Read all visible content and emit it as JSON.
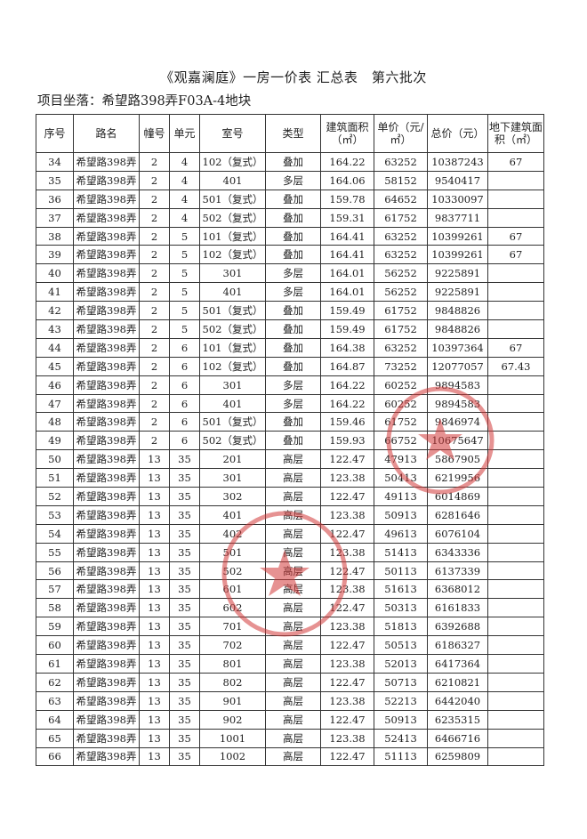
{
  "title": "《观嘉澜庭》一房一价表 汇总表　第六批次",
  "subtitle": "项目坐落：希望路398弄F03A-4地块",
  "stamp_color": "#d23a3a",
  "columns": [
    "序号",
    "路名",
    "幢号",
    "单元",
    "室号",
    "类型",
    "建筑面积（㎡）",
    "单价（元/㎡）",
    "总价（元）",
    "地下建筑面积（㎡）"
  ],
  "rows": [
    [
      "34",
      "希望路398弄",
      "2",
      "4",
      "102（复式）",
      "叠加",
      "164.22",
      "63252",
      "10387243",
      "67"
    ],
    [
      "35",
      "希望路398弄",
      "2",
      "4",
      "401",
      "多层",
      "164.06",
      "58152",
      "9540417",
      ""
    ],
    [
      "36",
      "希望路398弄",
      "2",
      "4",
      "501（复式）",
      "叠加",
      "159.78",
      "64652",
      "10330097",
      ""
    ],
    [
      "37",
      "希望路398弄",
      "2",
      "4",
      "502（复式）",
      "叠加",
      "159.31",
      "61752",
      "9837711",
      ""
    ],
    [
      "38",
      "希望路398弄",
      "2",
      "5",
      "101（复式）",
      "叠加",
      "164.41",
      "63252",
      "10399261",
      "67"
    ],
    [
      "39",
      "希望路398弄",
      "2",
      "5",
      "102（复式）",
      "叠加",
      "164.41",
      "63252",
      "10399261",
      "67"
    ],
    [
      "40",
      "希望路398弄",
      "2",
      "5",
      "301",
      "多层",
      "164.01",
      "56252",
      "9225891",
      ""
    ],
    [
      "41",
      "希望路398弄",
      "2",
      "5",
      "401",
      "多层",
      "164.01",
      "56252",
      "9225891",
      ""
    ],
    [
      "42",
      "希望路398弄",
      "2",
      "5",
      "501（复式）",
      "叠加",
      "159.49",
      "61752",
      "9848826",
      ""
    ],
    [
      "43",
      "希望路398弄",
      "2",
      "5",
      "502（复式）",
      "叠加",
      "159.49",
      "61752",
      "9848826",
      ""
    ],
    [
      "44",
      "希望路398弄",
      "2",
      "6",
      "101（复式）",
      "叠加",
      "164.38",
      "63252",
      "10397364",
      "67"
    ],
    [
      "45",
      "希望路398弄",
      "2",
      "6",
      "102（复式）",
      "叠加",
      "164.87",
      "73252",
      "12077057",
      "67.43"
    ],
    [
      "46",
      "希望路398弄",
      "2",
      "6",
      "301",
      "多层",
      "164.22",
      "60252",
      "9894583",
      ""
    ],
    [
      "47",
      "希望路398弄",
      "2",
      "6",
      "401",
      "多层",
      "164.22",
      "60252",
      "9894583",
      ""
    ],
    [
      "48",
      "希望路398弄",
      "2",
      "6",
      "501（复式）",
      "叠加",
      "159.46",
      "61752",
      "9846974",
      ""
    ],
    [
      "49",
      "希望路398弄",
      "2",
      "6",
      "502（复式）",
      "叠加",
      "159.93",
      "66752",
      "10675647",
      ""
    ],
    [
      "50",
      "希望路398弄",
      "13",
      "35",
      "201",
      "高层",
      "122.47",
      "47913",
      "5867905",
      ""
    ],
    [
      "51",
      "希望路398弄",
      "13",
      "35",
      "301",
      "高层",
      "123.38",
      "50413",
      "6219956",
      ""
    ],
    [
      "52",
      "希望路398弄",
      "13",
      "35",
      "302",
      "高层",
      "122.47",
      "49113",
      "6014869",
      ""
    ],
    [
      "53",
      "希望路398弄",
      "13",
      "35",
      "401",
      "高层",
      "123.38",
      "50913",
      "6281646",
      ""
    ],
    [
      "54",
      "希望路398弄",
      "13",
      "35",
      "402",
      "高层",
      "122.47",
      "49613",
      "6076104",
      ""
    ],
    [
      "55",
      "希望路398弄",
      "13",
      "35",
      "501",
      "高层",
      "123.38",
      "51413",
      "6343336",
      ""
    ],
    [
      "56",
      "希望路398弄",
      "13",
      "35",
      "502",
      "高层",
      "122.47",
      "50113",
      "6137339",
      ""
    ],
    [
      "57",
      "希望路398弄",
      "13",
      "35",
      "601",
      "高层",
      "123.38",
      "51613",
      "6368012",
      ""
    ],
    [
      "58",
      "希望路398弄",
      "13",
      "35",
      "602",
      "高层",
      "122.47",
      "50313",
      "6161833",
      ""
    ],
    [
      "59",
      "希望路398弄",
      "13",
      "35",
      "701",
      "高层",
      "123.38",
      "51813",
      "6392688",
      ""
    ],
    [
      "60",
      "希望路398弄",
      "13",
      "35",
      "702",
      "高层",
      "122.47",
      "50513",
      "6186327",
      ""
    ],
    [
      "61",
      "希望路398弄",
      "13",
      "35",
      "801",
      "高层",
      "123.38",
      "52013",
      "6417364",
      ""
    ],
    [
      "62",
      "希望路398弄",
      "13",
      "35",
      "802",
      "高层",
      "122.47",
      "50713",
      "6210821",
      ""
    ],
    [
      "63",
      "希望路398弄",
      "13",
      "35",
      "901",
      "高层",
      "123.38",
      "52213",
      "6442040",
      ""
    ],
    [
      "64",
      "希望路398弄",
      "13",
      "35",
      "902",
      "高层",
      "122.47",
      "50913",
      "6235315",
      ""
    ],
    [
      "65",
      "希望路398弄",
      "13",
      "35",
      "1001",
      "高层",
      "123.38",
      "52413",
      "6466716",
      ""
    ],
    [
      "66",
      "希望路398弄",
      "13",
      "35",
      "1002",
      "高层",
      "122.47",
      "51113",
      "6259809",
      ""
    ]
  ]
}
